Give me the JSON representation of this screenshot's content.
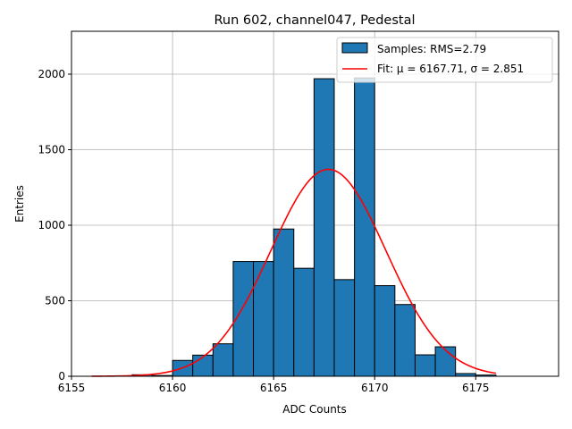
{
  "chart_data": {
    "type": "bar",
    "title": "Run 602, channel047, Pedestal",
    "xlabel": "ADC Counts",
    "ylabel": "Entries",
    "xlim": [
      6155,
      6179.1
    ],
    "ylim": [
      0,
      2284
    ],
    "grid": true,
    "legend_position": "top-right",
    "xticks": [
      6155,
      6160,
      6165,
      6170,
      6175
    ],
    "yticks": [
      0,
      500,
      1000,
      1500,
      2000
    ],
    "bin_width": 1,
    "bins": [
      6158,
      6159,
      6160,
      6161,
      6162,
      6163,
      6164,
      6165,
      6166,
      6167,
      6168,
      6169,
      6170,
      6171,
      6172,
      6173,
      6174,
      6175
    ],
    "values": [
      10,
      5,
      105,
      140,
      215,
      760,
      760,
      975,
      715,
      1970,
      640,
      1975,
      600,
      475,
      142,
      195,
      18,
      8
    ],
    "bar_color": "#1f77b4",
    "fit": {
      "mu": 6167.71,
      "sigma": 2.851,
      "amplitude": 1370,
      "range": [
        6156,
        6176
      ],
      "color": "#ff0000"
    },
    "legend": [
      {
        "label": "Samples: RMS=2.79",
        "kind": "patch"
      },
      {
        "label": "Fit: μ = 6167.71, σ = 2.851",
        "kind": "line"
      }
    ]
  }
}
